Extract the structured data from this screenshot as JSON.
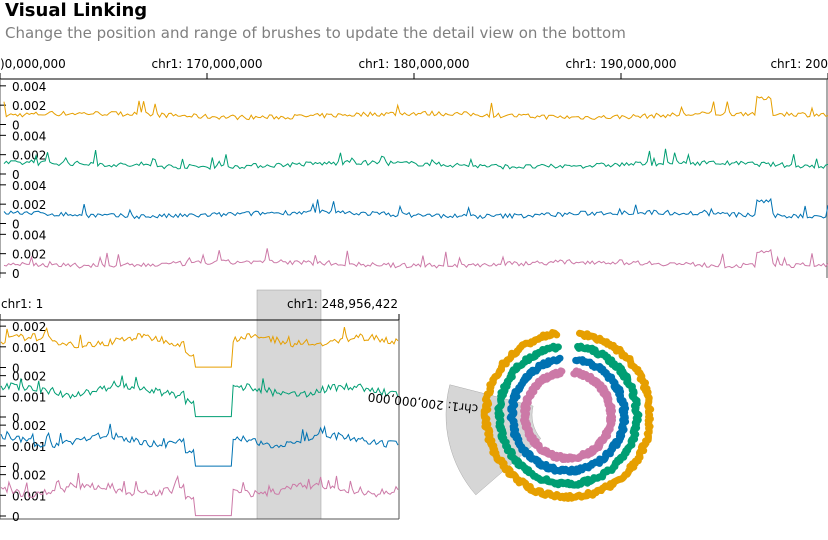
{
  "header": {
    "title": "Visual Linking",
    "subtitle": "Change the position and range of brushes to update the detail view on the bottom"
  },
  "colors": {
    "series": [
      "#e69f00",
      "#009e73",
      "#0072b2",
      "#cc79a7"
    ],
    "brush": "#d3d3d3"
  },
  "chart_data": [
    {
      "type": "line",
      "view": "top-detail",
      "x_ticks": [
        {
          "label": ")0,000,000",
          "value": 160000000
        },
        {
          "label": "chr1: 170,000,000",
          "value": 170000000
        },
        {
          "label": "chr1: 180,000,000",
          "value": 180000000
        },
        {
          "label": "chr1: 190,000,000",
          "value": 190000000
        },
        {
          "label": "chr1: 200",
          "value": 200000000
        }
      ],
      "xlim": [
        160000000,
        200000000
      ],
      "tracks": [
        {
          "ylim": [
            0,
            0.0045
          ],
          "y_ticks": [
            "0",
            "0.002",
            "0.004"
          ],
          "y_tick_values": [
            0,
            0.002,
            0.004
          ]
        },
        {
          "ylim": [
            0,
            0.0045
          ],
          "y_ticks": [
            "0",
            "0.002",
            "0.004"
          ],
          "y_tick_values": [
            0,
            0.002,
            0.004
          ]
        },
        {
          "ylim": [
            0,
            0.0045
          ],
          "y_ticks": [
            "0",
            "0.002",
            "0.004"
          ],
          "y_tick_values": [
            0,
            0.002,
            0.004
          ]
        },
        {
          "ylim": [
            0,
            0.0045
          ],
          "y_ticks": [
            "0",
            "0.002",
            "0.004"
          ],
          "y_tick_values": [
            0,
            0.002,
            0.004
          ]
        }
      ]
    },
    {
      "type": "line",
      "view": "bottom-overview",
      "x_ticks": [
        {
          "label": "chr1: 1",
          "value": 1
        },
        {
          "label": "chr1: 248,956,422",
          "value": 248956422
        }
      ],
      "xlim": [
        1,
        248956422
      ],
      "brush_range": [
        160000000,
        200000000
      ],
      "tracks": [
        {
          "ylim": [
            0,
            0.0022
          ],
          "y_ticks": [
            "0",
            "0.001",
            "0.002"
          ],
          "y_tick_values": [
            0,
            0.001,
            0.002
          ]
        },
        {
          "ylim": [
            0,
            0.0022
          ],
          "y_ticks": [
            "0",
            "0.001",
            "0.002"
          ],
          "y_tick_values": [
            0,
            0.001,
            0.002
          ]
        },
        {
          "ylim": [
            0,
            0.0022
          ],
          "y_ticks": [
            "0",
            "0.001",
            "0.002"
          ],
          "y_tick_values": [
            0,
            0.001,
            0.002
          ]
        },
        {
          "ylim": [
            0,
            0.0022
          ],
          "y_ticks": [
            "0",
            "0.001",
            "0.002"
          ],
          "y_tick_values": [
            0,
            0.001,
            0.002
          ]
        }
      ]
    },
    {
      "type": "circular-line",
      "view": "circular-overview",
      "label": "chr1: 200,000,000",
      "label_value": 200000000,
      "brush_range": [
        160000000,
        200000000
      ],
      "xlim": [
        1,
        248956422
      ],
      "rings": 4
    }
  ]
}
